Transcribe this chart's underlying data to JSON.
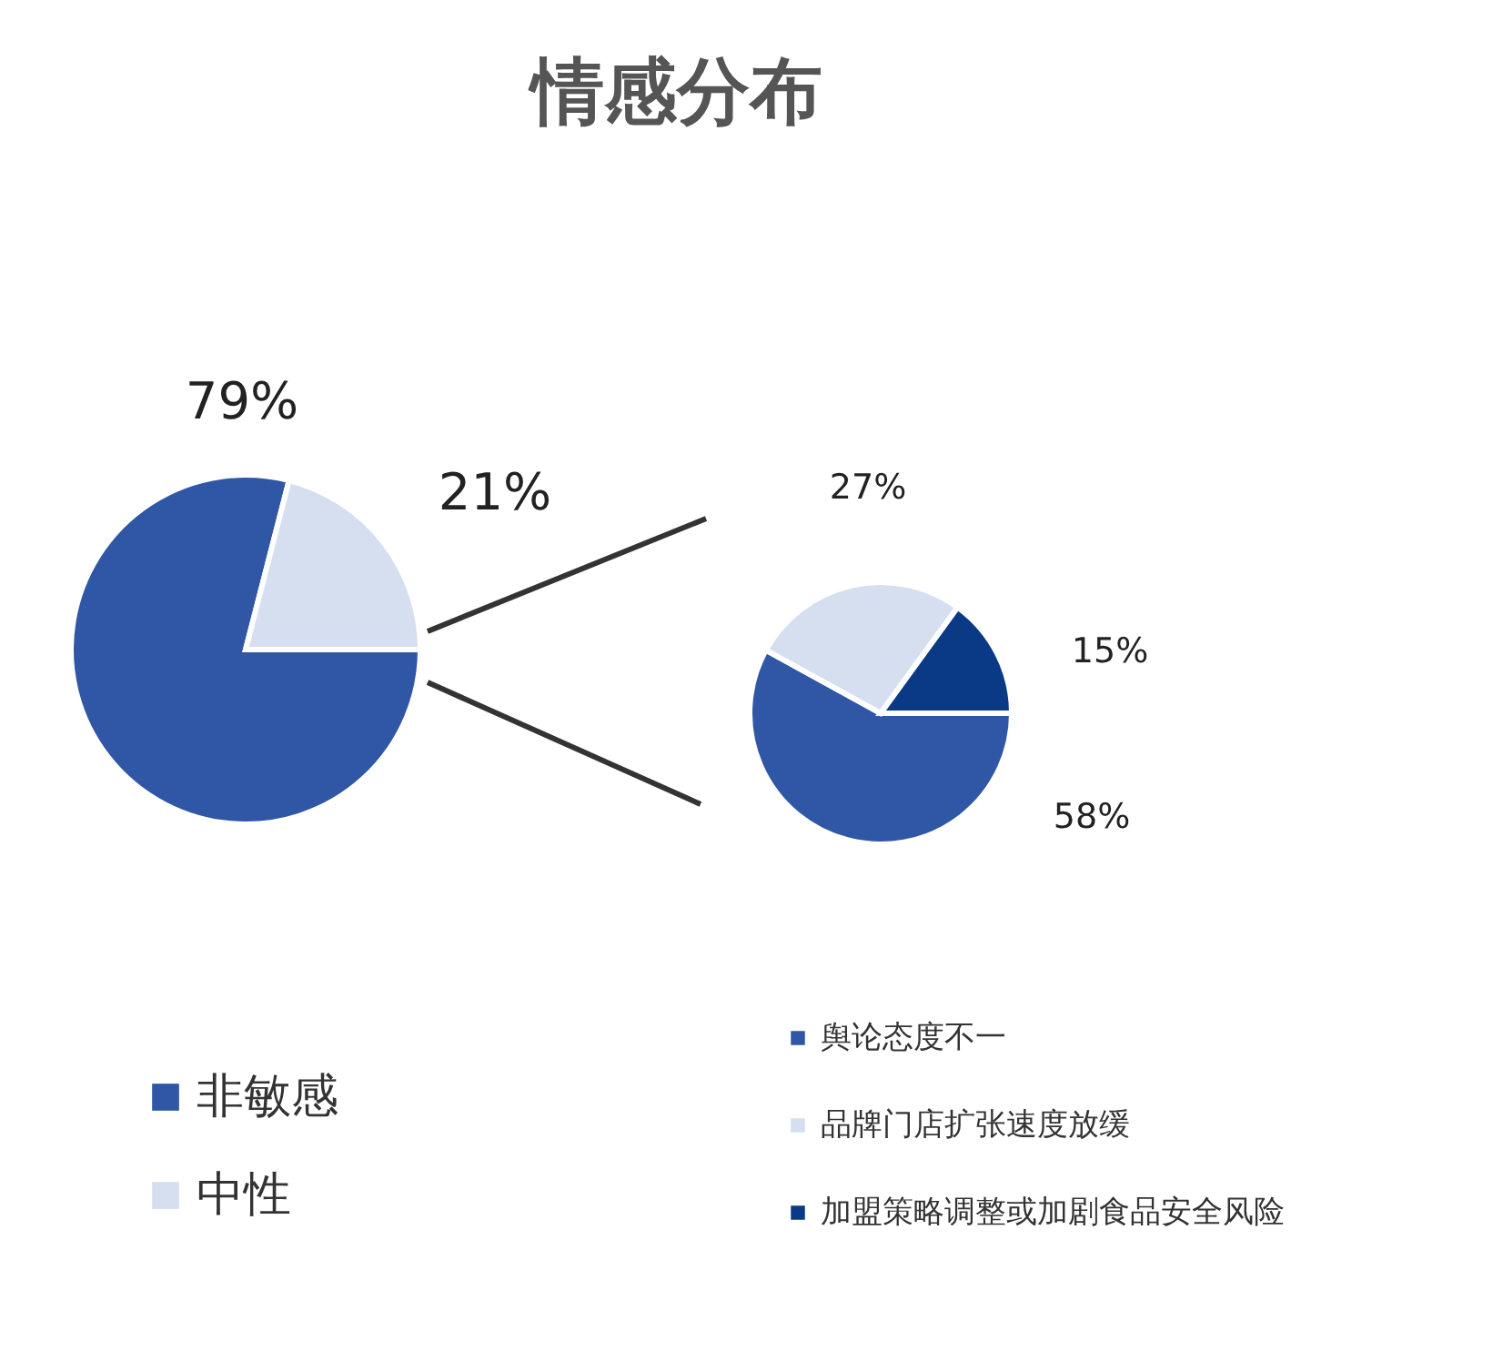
{
  "chart_data": [
    {
      "type": "pie",
      "title": "情感分布",
      "categories": [
        "非敏感",
        "中性"
      ],
      "values": [
        79,
        21
      ],
      "colors": [
        "#2f57a5",
        "#d5dff0"
      ],
      "value_labels": [
        "79%",
        "21%"
      ],
      "legend": "bottom left"
    },
    {
      "type": "pie",
      "categories": [
        "舆论态度不一",
        "品牌门店扩张速度放缓",
        "加盟策略调整或加剧食品安全风险"
      ],
      "values": [
        58,
        27,
        15
      ],
      "colors": [
        "#2f57a5",
        "#d5dff0",
        "#0a3a86"
      ],
      "value_labels": [
        "58%",
        "27%",
        "15%"
      ],
      "legend": "bottom right"
    }
  ]
}
